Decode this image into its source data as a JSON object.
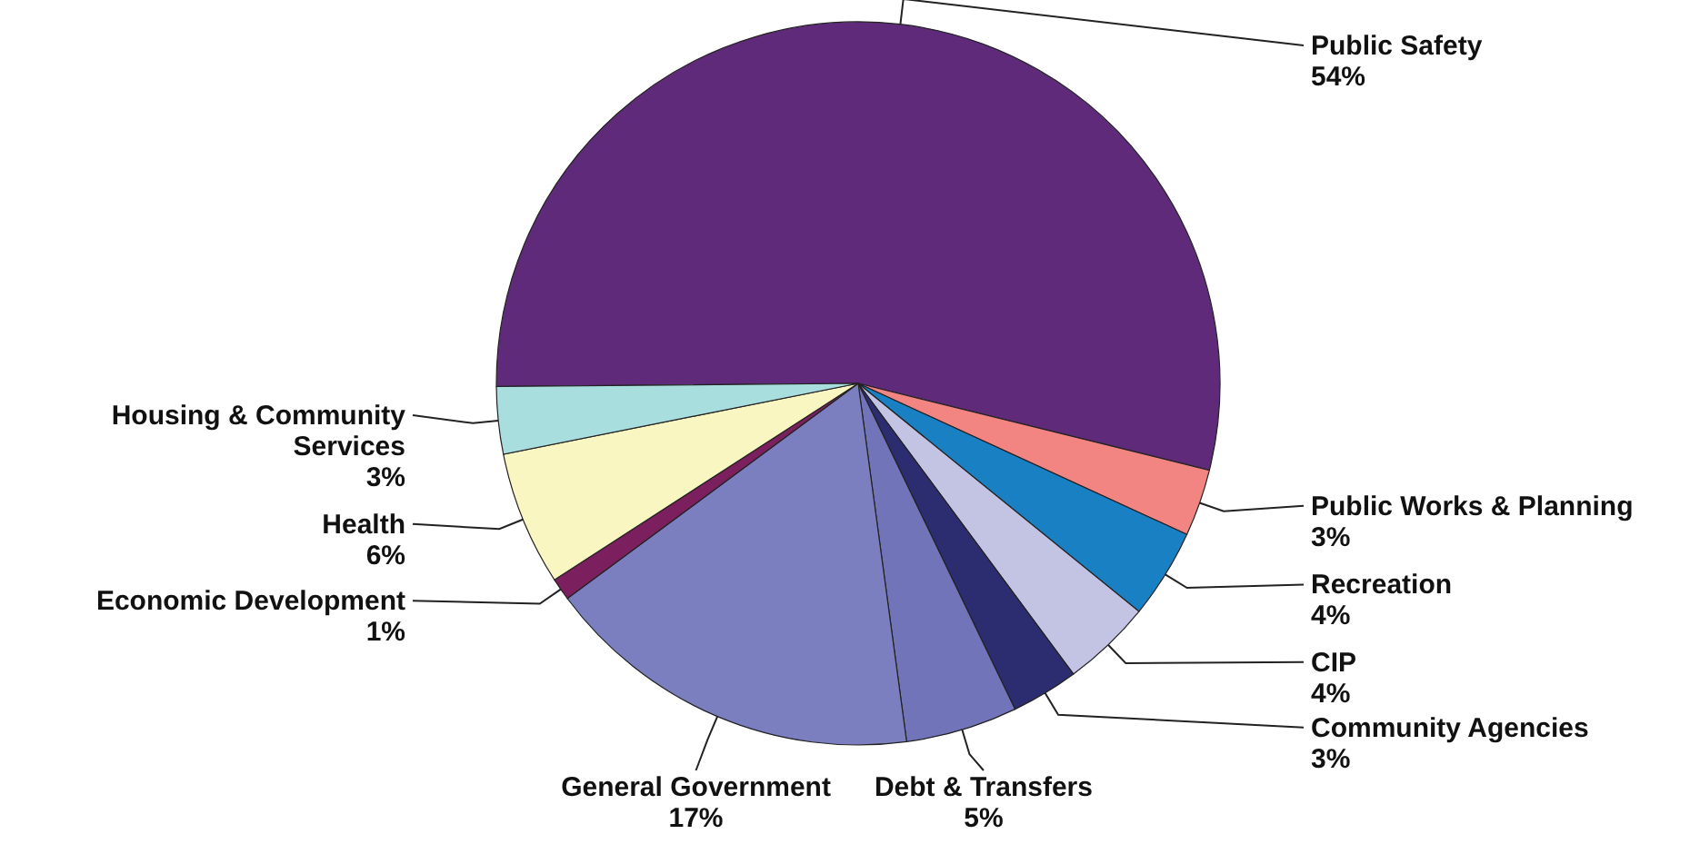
{
  "chart_data": {
    "type": "pie",
    "categories": [
      "Public Safety",
      "Public Works & Planning",
      "Recreation",
      "CIP",
      "Community Agencies",
      "Debt & Transfers",
      "General Government",
      "Economic Development",
      "Health",
      "Housing & Community Services"
    ],
    "values": [
      54,
      3,
      4,
      4,
      3,
      5,
      17,
      1,
      6,
      3
    ],
    "value_labels": [
      "54%",
      "3%",
      "4%",
      "4%",
      "3%",
      "5%",
      "17%",
      "1%",
      "6%",
      "3%"
    ],
    "colors": [
      "#5f2a7a",
      "#f28482",
      "#1a80c4",
      "#c3c3e3",
      "#2b2d70",
      "#7174b9",
      "#7b7fbf",
      "#7b1f5e",
      "#faf6c2",
      "#a9dede"
    ]
  }
}
